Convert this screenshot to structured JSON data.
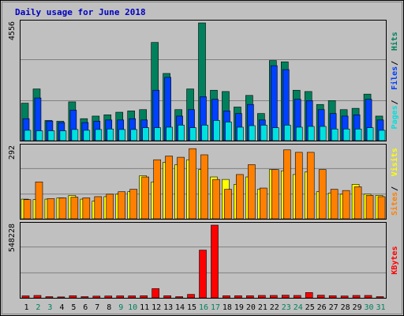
{
  "chart_data": [
    {
      "type": "bar",
      "title": "Daily usage for June 2018",
      "panel": "hits-files-pages",
      "categories": [
        "1",
        "2",
        "3",
        "4",
        "5",
        "6",
        "7",
        "8",
        "9",
        "10",
        "11",
        "12",
        "13",
        "14",
        "15",
        "16",
        "17",
        "18",
        "19",
        "20",
        "21",
        "22",
        "23",
        "24",
        "25",
        "26",
        "27",
        "28",
        "29",
        "30",
        "31"
      ],
      "y_max_label": "4556",
      "ylim": [
        0,
        4556
      ],
      "legend": [
        {
          "label": "Pages",
          "color": "#00E0E0"
        },
        {
          "label": "Files",
          "color": "#0040FF"
        },
        {
          "label": "Hits",
          "color": "#00805C"
        }
      ],
      "series": [
        {
          "name": "Hits",
          "color": "#00805C",
          "values": [
            1450,
            2000,
            780,
            750,
            1500,
            850,
            950,
            1000,
            1100,
            1150,
            1200,
            3800,
            2600,
            1200,
            2000,
            4556,
            1950,
            1900,
            1300,
            1750,
            1050,
            3100,
            3050,
            1950,
            1900,
            1400,
            1550,
            1200,
            1250,
            1800,
            950
          ]
        },
        {
          "name": "Files",
          "color": "#0040FF",
          "values": [
            850,
            1650,
            760,
            700,
            1180,
            700,
            750,
            800,
            800,
            850,
            800,
            1950,
            2450,
            950,
            1200,
            1700,
            1600,
            1150,
            1050,
            1400,
            800,
            2900,
            2750,
            1600,
            1550,
            1200,
            1050,
            950,
            1000,
            1600,
            800
          ]
        },
        {
          "name": "Pages",
          "color": "#00E0E0",
          "values": [
            400,
            380,
            380,
            380,
            430,
            400,
            430,
            450,
            430,
            430,
            500,
            500,
            520,
            600,
            500,
            600,
            780,
            720,
            520,
            580,
            600,
            500,
            600,
            520,
            550,
            550,
            450,
            450,
            450,
            500,
            400
          ]
        }
      ]
    },
    {
      "type": "bar",
      "panel": "visits-sites",
      "categories": [
        "1",
        "2",
        "3",
        "4",
        "5",
        "6",
        "7",
        "8",
        "9",
        "10",
        "11",
        "12",
        "13",
        "14",
        "15",
        "16",
        "17",
        "18",
        "19",
        "20",
        "21",
        "22",
        "23",
        "24",
        "25",
        "26",
        "27",
        "28",
        "29",
        "30",
        "31"
      ],
      "y_max_label": "292",
      "ylim": [
        0,
        292
      ],
      "legend": [
        {
          "label": "Sites",
          "color": "#FF8000"
        },
        {
          "label": "Visits",
          "color": "#FFFF00"
        }
      ],
      "series": [
        {
          "name": "Visits",
          "color": "#FFFF00",
          "values": [
            80,
            78,
            80,
            85,
            95,
            80,
            72,
            90,
            100,
            110,
            175,
            150,
            230,
            220,
            240,
            200,
            170,
            160,
            140,
            170,
            120,
            200,
            195,
            180,
            190,
            110,
            105,
            100,
            140,
            100,
            95
          ]
        },
        {
          "name": "Sites",
          "color": "#FF8000",
          "values": [
            78,
            150,
            82,
            85,
            88,
            85,
            90,
            100,
            110,
            120,
            170,
            240,
            255,
            250,
            285,
            260,
            160,
            120,
            180,
            220,
            125,
            200,
            280,
            270,
            270,
            200,
            120,
            115,
            130,
            95,
            90
          ]
        }
      ]
    },
    {
      "type": "bar",
      "panel": "kbytes",
      "categories": [
        "1",
        "2",
        "3",
        "4",
        "5",
        "6",
        "7",
        "8",
        "9",
        "10",
        "11",
        "12",
        "13",
        "14",
        "15",
        "16",
        "17",
        "18",
        "19",
        "20",
        "21",
        "22",
        "23",
        "24",
        "25",
        "26",
        "27",
        "28",
        "29",
        "30",
        "31"
      ],
      "y_max_label": "548228",
      "ylim": [
        0,
        548228
      ],
      "legend": [
        {
          "label": "KBytes",
          "color": "#FF0000"
        }
      ],
      "series": [
        {
          "name": "KBytes",
          "color": "#FF0000",
          "values": [
            15000,
            18000,
            9000,
            7000,
            16000,
            9000,
            13000,
            14000,
            15000,
            15000,
            16000,
            70000,
            16000,
            9000,
            26000,
            360000,
            548228,
            16000,
            16000,
            16000,
            18000,
            18000,
            20000,
            18000,
            40000,
            20000,
            16000,
            14000,
            18000,
            18000,
            9000
          ]
        }
      ]
    }
  ],
  "x_label_colors": {
    "weekday": "#000000",
    "weekend": "#00805C"
  },
  "weekend_days": [
    "2",
    "3",
    "9",
    "10",
    "16",
    "17",
    "23",
    "24",
    "30",
    "31"
  ],
  "colors": {
    "panel_bg": "#C0C0C0",
    "grid": "#808080",
    "title": "#0000FF"
  }
}
